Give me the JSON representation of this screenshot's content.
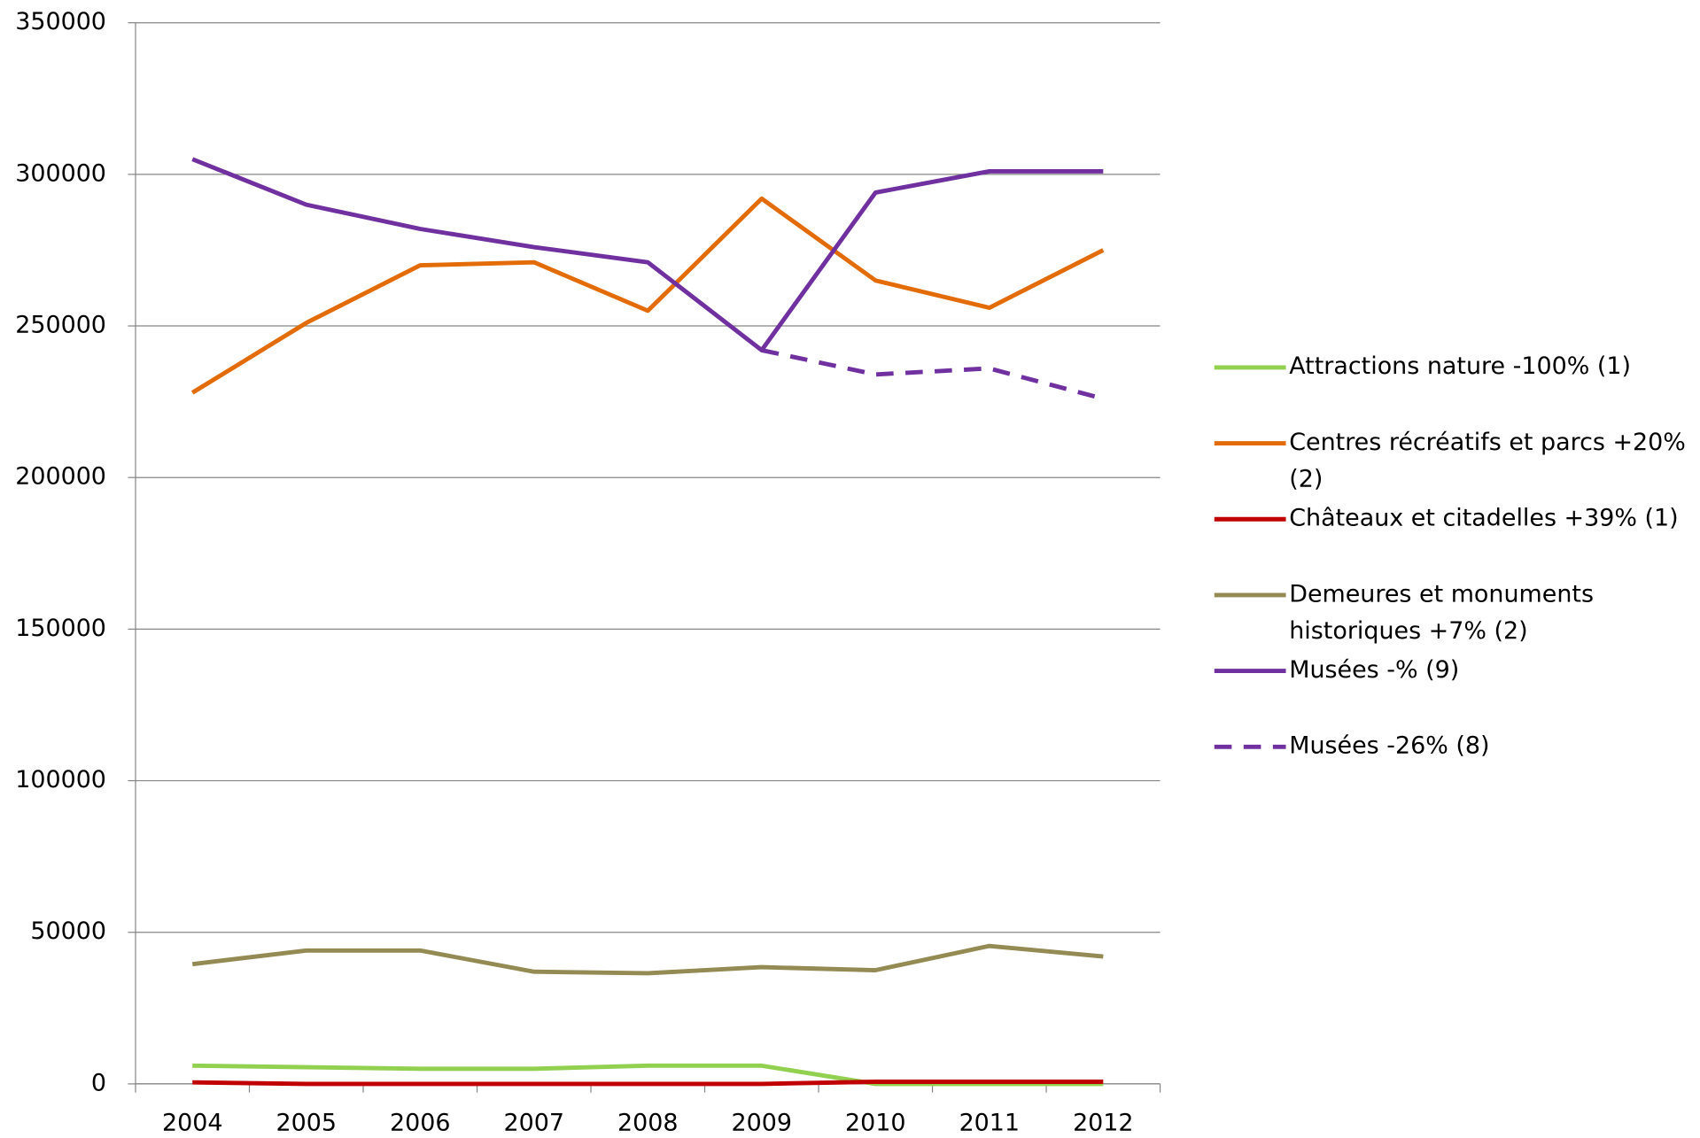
{
  "chart_data": {
    "type": "line",
    "categories": [
      "2004",
      "2005",
      "2006",
      "2007",
      "2008",
      "2009",
      "2010",
      "2011",
      "2012"
    ],
    "ylim": [
      0,
      350000
    ],
    "yticks": [
      0,
      50000,
      100000,
      150000,
      200000,
      250000,
      300000,
      350000
    ],
    "grid": true,
    "legend": "right",
    "series": [
      {
        "name": "Attractions nature -100% (1)",
        "color": "#92d050",
        "values": [
          6000,
          5500,
          5000,
          5000,
          6000,
          6000,
          0,
          0,
          0
        ]
      },
      {
        "name": "Centres récréatifs et parcs +20% (2)",
        "color": "#e36c09",
        "values": [
          228000,
          251000,
          270000,
          271000,
          255000,
          292000,
          265000,
          256000,
          275000
        ]
      },
      {
        "name": "Châteaux et citadelles +39% (1)",
        "color": "#c00000",
        "values": [
          500,
          0,
          0,
          0,
          0,
          0,
          700,
          700,
          700
        ]
      },
      {
        "name": "Demeures et monuments historiques +7% (2)",
        "color": "#948a54",
        "values": [
          39500,
          44000,
          44000,
          37000,
          36500,
          38500,
          37500,
          45500,
          42000
        ]
      },
      {
        "name": "Musées -% (9)",
        "color": "#7030a0",
        "values": [
          305000,
          290000,
          282000,
          276000,
          271000,
          242000,
          294000,
          301000,
          301000
        ]
      },
      {
        "name": "Musées -26% (8)",
        "color": "#7030a0",
        "dashed": true,
        "values": [
          null,
          null,
          null,
          null,
          null,
          242000,
          234000,
          236000,
          226000
        ]
      }
    ]
  }
}
